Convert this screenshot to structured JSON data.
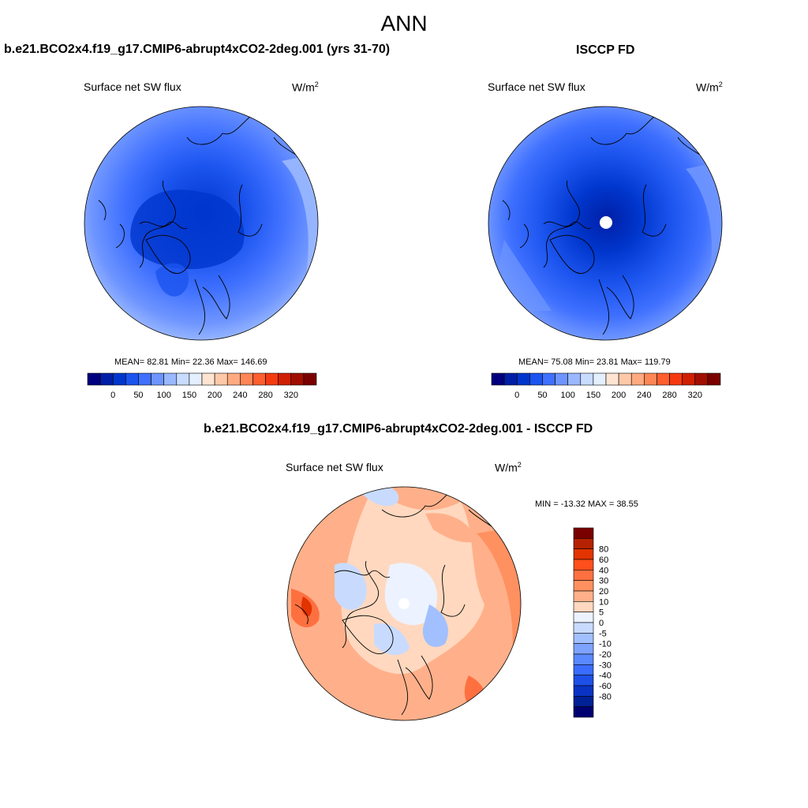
{
  "suptitle": "ANN",
  "panels": [
    {
      "title": "b.e21.BCO2x4.f19_g17.CMIP6-abrupt4xCO2-2deg.001 (yrs 31-70)",
      "variable": "Surface net SW flux",
      "units": "W/m",
      "units_exp": "2",
      "stats": "MEAN=  82.81  Min=  22.36  Max= 146.69",
      "mean": 82.81,
      "min": 22.36,
      "max": 146.69
    },
    {
      "title": "ISCCP FD",
      "variable": "Surface net SW flux",
      "units": "W/m",
      "units_exp": "2",
      "stats": "MEAN=  75.08  Min=  23.81  Max= 119.79",
      "mean": 75.08,
      "min": 23.81,
      "max": 119.79
    }
  ],
  "diff_panel": {
    "title": "b.e21.BCO2x4.f19_g17.CMIP6-abrupt4xCO2-2deg.001 - ISCCP FD",
    "variable": "Surface net SW flux",
    "units": "W/m",
    "units_exp": "2",
    "stats": "MIN = -13.32 MAX =  38.55",
    "min": -13.32,
    "max": 38.55
  },
  "abs_colorbar": {
    "colors": [
      "#00007f",
      "#001fa6",
      "#0036cc",
      "#1b54ee",
      "#3f70ff",
      "#6e95ff",
      "#9ab8ff",
      "#c8dcff",
      "#e4efff",
      "#ffe4d2",
      "#ffc9a8",
      "#ffaa80",
      "#ff8656",
      "#ff5e2e",
      "#f43a10",
      "#d01f02",
      "#a10e00",
      "#7a0000"
    ],
    "labels": [
      "0",
      "50",
      "100",
      "150",
      "200",
      "240",
      "280",
      "320"
    ]
  },
  "diff_colorbar": {
    "colors": [
      "#7a0000",
      "#b52200",
      "#e23300",
      "#ff4f1a",
      "#ff7040",
      "#ff9060",
      "#ffb08a",
      "#ffd8bf",
      "#ecf2ff",
      "#c8dbff",
      "#a2c0ff",
      "#7ea3ff",
      "#5a88ff",
      "#3a6cff",
      "#1e4fe8",
      "#0a33c4",
      "#002095",
      "#000070"
    ],
    "labels": [
      "80",
      "60",
      "40",
      "30",
      "20",
      "10",
      "5",
      "0",
      "-5",
      "-10",
      "-20",
      "-30",
      "-40",
      "-60",
      "-80"
    ]
  }
}
